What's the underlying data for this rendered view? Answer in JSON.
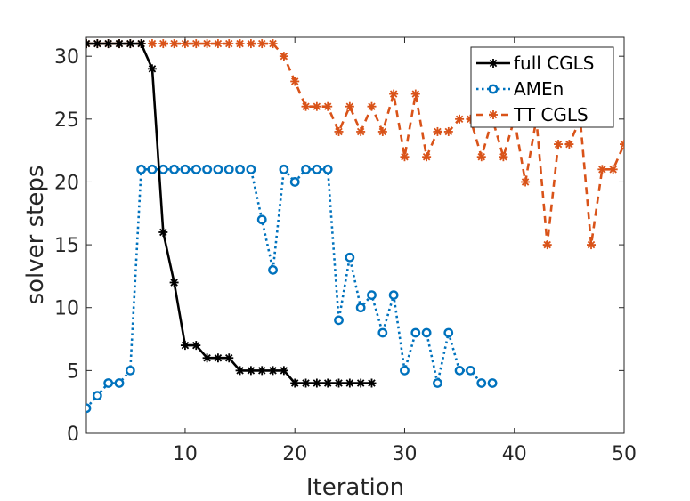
{
  "chart_data": {
    "type": "line",
    "title": "",
    "xlabel": "Iteration",
    "ylabel": "solver steps",
    "xlim": [
      1,
      50
    ],
    "ylim": [
      0,
      31.5
    ],
    "xticks": [
      10,
      20,
      30,
      40,
      50
    ],
    "yticks": [
      0,
      5,
      10,
      15,
      20,
      25,
      30
    ],
    "grid": false,
    "legend_position": "top-right",
    "series": [
      {
        "name": "full CGLS",
        "color": "#000000",
        "line_style": "solid",
        "marker": "asterisk",
        "x": [
          1,
          2,
          3,
          4,
          5,
          6,
          7,
          8,
          9,
          10,
          11,
          12,
          13,
          14,
          15,
          16,
          17,
          18,
          19,
          20,
          21,
          22,
          23,
          24,
          25,
          26,
          27
        ],
        "values": [
          31,
          31,
          31,
          31,
          31,
          31,
          29,
          16,
          12,
          7,
          7,
          6,
          6,
          6,
          5,
          5,
          5,
          5,
          5,
          4,
          4,
          4,
          4,
          4,
          4,
          4,
          4
        ]
      },
      {
        "name": "AMEn",
        "color": "#0072BD",
        "line_style": "dotted",
        "marker": "circle",
        "x": [
          1,
          2,
          3,
          4,
          5,
          6,
          7,
          8,
          9,
          10,
          11,
          12,
          13,
          14,
          15,
          16,
          17,
          18,
          19,
          20,
          21,
          22,
          23,
          24,
          25,
          26,
          27,
          28,
          29,
          30,
          31,
          32,
          33,
          34,
          35,
          36,
          37,
          38
        ],
        "values": [
          2,
          3,
          4,
          4,
          5,
          21,
          21,
          21,
          21,
          21,
          21,
          21,
          21,
          21,
          21,
          21,
          17,
          13,
          21,
          20,
          21,
          21,
          21,
          9,
          14,
          10,
          11,
          8,
          11,
          5,
          8,
          8,
          4,
          8,
          5,
          5,
          4,
          4
        ]
      },
      {
        "name": "TT CGLS",
        "color": "#D95319",
        "line_style": "dashed",
        "marker": "asterisk",
        "x": [
          1,
          2,
          3,
          4,
          5,
          6,
          7,
          8,
          9,
          10,
          11,
          12,
          13,
          14,
          15,
          16,
          17,
          18,
          19,
          20,
          21,
          22,
          23,
          24,
          25,
          26,
          27,
          28,
          29,
          30,
          31,
          32,
          33,
          34,
          35,
          36,
          37,
          38,
          39,
          40,
          41,
          42,
          43,
          44,
          45,
          46,
          47,
          48,
          49,
          50
        ],
        "values": [
          31,
          31,
          31,
          31,
          31,
          31,
          31,
          31,
          31,
          31,
          31,
          31,
          31,
          31,
          31,
          31,
          31,
          31,
          30,
          28,
          26,
          26,
          26,
          24,
          26,
          24,
          26,
          24,
          27,
          22,
          27,
          22,
          24,
          24,
          25,
          25,
          22,
          25,
          22,
          25,
          20,
          25,
          15,
          23,
          23,
          25,
          15,
          21,
          21,
          23
        ]
      }
    ]
  }
}
